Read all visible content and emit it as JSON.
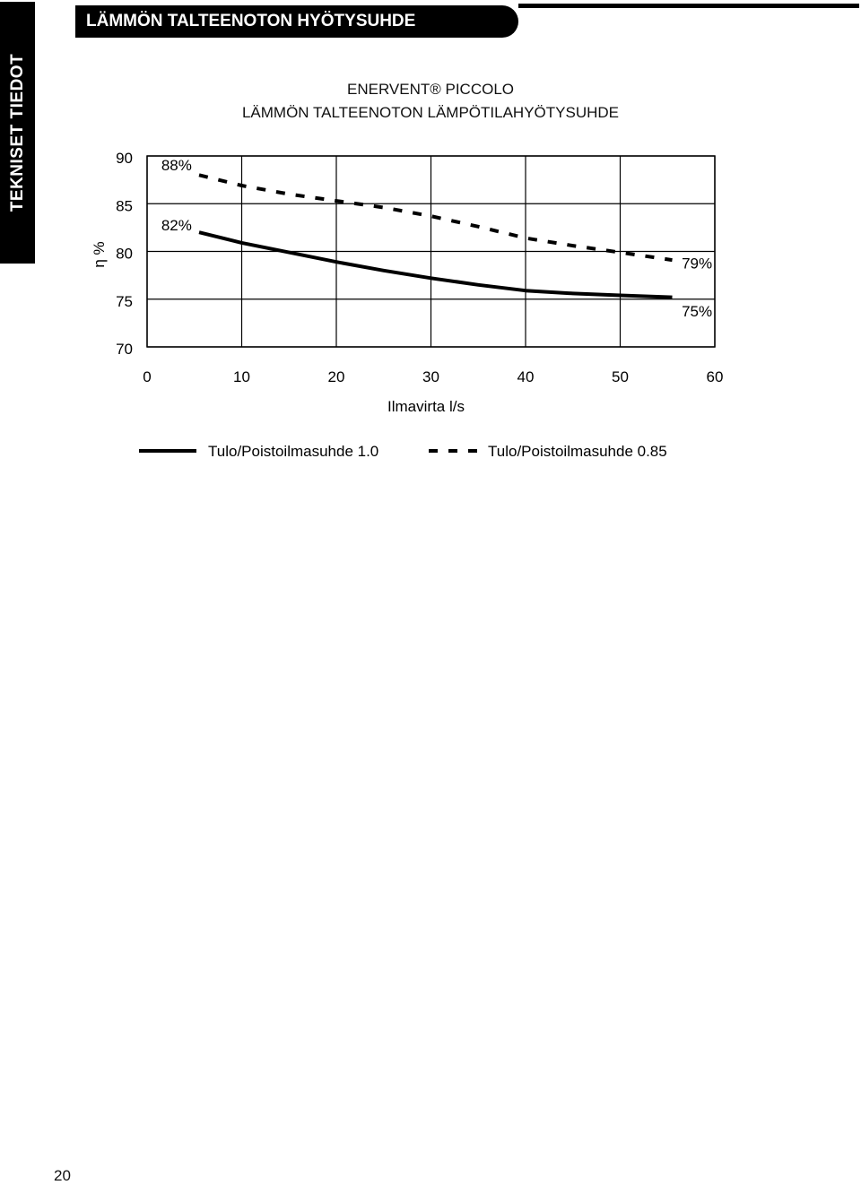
{
  "side_tab": {
    "label": "TEKNISET TIEDOT"
  },
  "header": {
    "title": "LÄMMÖN TALTEENOTON HYÖTYSUHDE"
  },
  "page_number": "20",
  "colors": {
    "ink": "#000000",
    "paper": "#ffffff"
  },
  "chart_data": {
    "type": "line",
    "title": "ENERVENT® PICCOLO",
    "subtitle": "LÄMMÖN TALTEENOTON LÄMPÖTILAHYÖTYSUHDE",
    "xlabel": "Ilmavirta l/s",
    "ylabel": "η %",
    "xlim": [
      0,
      60
    ],
    "ylim": [
      70,
      90
    ],
    "x_ticks": [
      0,
      10,
      20,
      30,
      40,
      50,
      60
    ],
    "y_ticks": [
      70,
      75,
      80,
      85,
      90
    ],
    "grid": "vertical lines and horizontal lines at each tick",
    "legend_position": "bottom",
    "series": [
      {
        "name": "Tulo/Poistoilmasuhde 1.0",
        "style": "solid",
        "x": [
          5.5,
          10,
          15,
          20,
          25,
          30,
          35,
          40,
          45,
          50,
          55.5
        ],
        "y": [
          82.0,
          80.9,
          79.9,
          78.9,
          78.0,
          77.2,
          76.5,
          75.9,
          75.6,
          75.4,
          75.2
        ]
      },
      {
        "name": "Tulo/Poistoilmasuhde 0.85",
        "style": "dashed",
        "x": [
          5.5,
          10,
          15,
          20,
          25,
          30,
          35,
          40,
          45,
          50,
          55.5
        ],
        "y": [
          88.0,
          86.9,
          86.0,
          85.3,
          84.6,
          83.7,
          82.6,
          81.4,
          80.6,
          79.9,
          79.1
        ]
      }
    ],
    "annotations": [
      {
        "text": "88%",
        "x": 1.5,
        "y": 88.5
      },
      {
        "text": "82%",
        "x": 1.5,
        "y": 82.2
      },
      {
        "text": "79%",
        "x": 56.5,
        "y": 78.2
      },
      {
        "text": "75%",
        "x": 56.5,
        "y": 73.2
      }
    ]
  }
}
